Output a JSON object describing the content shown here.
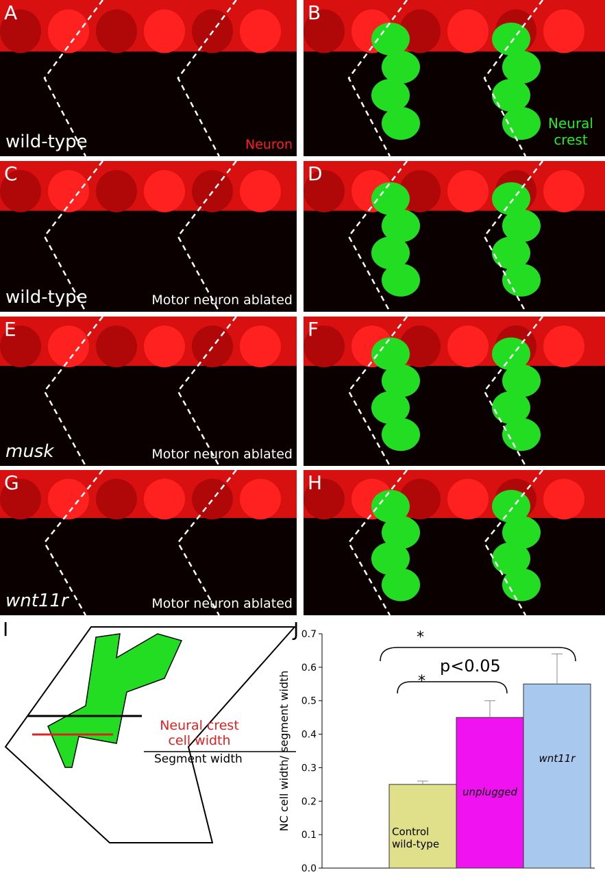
{
  "panels": [
    {
      "letter": "A",
      "label": "wild-type",
      "note": "Neuron"
    },
    {
      "letter": "B",
      "note": "Neural crest"
    },
    {
      "letter": "C",
      "label": "wild-type",
      "note": "Motor neuron ablated"
    },
    {
      "letter": "D"
    },
    {
      "letter": "E",
      "label": "musk",
      "note": "Motor neuron ablated"
    },
    {
      "letter": "F"
    },
    {
      "letter": "G",
      "label": "wnt11r",
      "note": "Motor neuron ablated"
    },
    {
      "letter": "H"
    }
  ],
  "diagram": {
    "letter": "I",
    "numerator": "Neural crest cell width",
    "denominator": "Segment width"
  },
  "chart_data": {
    "type": "bar",
    "letter": "J",
    "y_label": "NC cell width/ segment width",
    "categories": [
      "Control wild-type",
      "unplugged",
      "wnt11r"
    ],
    "values": [
      0.25,
      0.45,
      0.55
    ],
    "errors": [
      0.01,
      0.05,
      0.09
    ],
    "colors": [
      "#e0df8a",
      "#f012f0",
      "#a9c8ee"
    ],
    "ylim": [
      0,
      0.7
    ],
    "yticks": [
      {
        "value": 0,
        "label": "0.0"
      },
      0.1,
      0.2,
      0.3,
      0.4,
      0.5,
      0.6,
      0.7
    ],
    "annotations": [
      "*",
      "*",
      "p<0.05"
    ]
  }
}
